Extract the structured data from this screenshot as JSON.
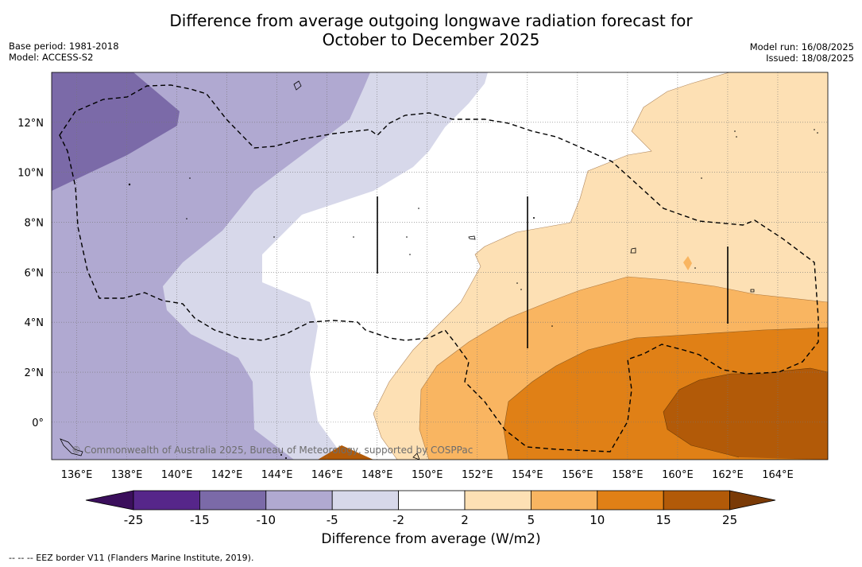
{
  "header": {
    "title_line1": "Difference from average outgoing longwave radiation forecast for",
    "title_line2": "October to December 2025",
    "base_period": "Base period: 1981-2018",
    "model": "Model: ACCESS-S2",
    "model_run": "Model run: 16/08/2025",
    "issued": "Issued: 18/08/2025"
  },
  "map": {
    "lon_range": [
      135,
      166
    ],
    "lat_range": [
      -1.5,
      14
    ],
    "lon_ticks": [
      "136°E",
      "138°E",
      "140°E",
      "142°E",
      "144°E",
      "146°E",
      "148°E",
      "150°E",
      "152°E",
      "154°E",
      "156°E",
      "158°E",
      "160°E",
      "162°E",
      "164°E"
    ],
    "lat_ticks": [
      "0°",
      "2°N",
      "4°N",
      "6°N",
      "8°N",
      "10°N",
      "12°N"
    ],
    "grid": true,
    "copyright": "© Commonwealth of Australia 2025, Bureau of Meteorology, supported by COSPPac"
  },
  "colorbar": {
    "title": "Difference from average (W/m2)",
    "labels": [
      "-25",
      "-15",
      "-10",
      "-5",
      "-2",
      "2",
      "5",
      "10",
      "15",
      "25"
    ],
    "colors": {
      "below": "#3b0f5c",
      "bins": [
        "#56268a",
        "#7b6aa8",
        "#b0a9d1",
        "#d7d8ea",
        "#ffffff",
        "#fde0b4",
        "#f9b561",
        "#e08016",
        "#b25a08"
      ],
      "above": "#7a3a06"
    }
  },
  "footnote": "--  --  -- EEZ border V11 (Flanders Marine Institute, 2019)."
}
